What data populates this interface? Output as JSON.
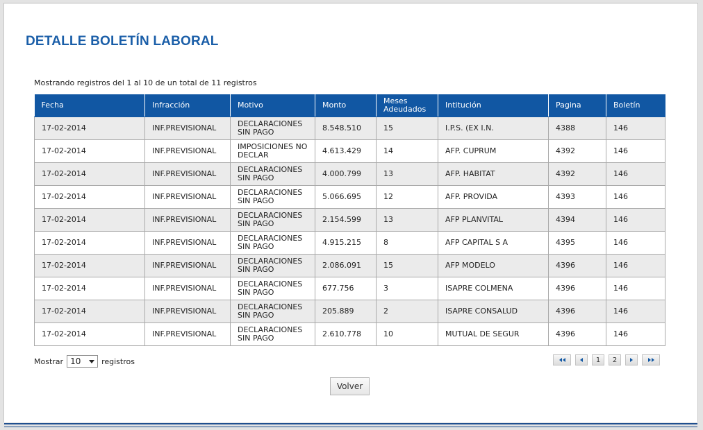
{
  "page": {
    "title": "DETALLE BOLETÍN LABORAL"
  },
  "info": {
    "text": "Mostrando registros del 1 al 10 de un total de 11 registros"
  },
  "table": {
    "headers": [
      "Fecha",
      "Infracción",
      "Motivo",
      "Monto",
      "Meses Adeudados",
      "Intitución",
      "Pagina",
      "Boletín"
    ],
    "rows": [
      [
        "17-02-2014",
        "INF.PREVISIONAL",
        "DECLARACIONES SIN PAGO",
        "8.548.510",
        "15",
        "I.P.S. (EX I.N.",
        "4388",
        "146"
      ],
      [
        "17-02-2014",
        "INF.PREVISIONAL",
        "IMPOSICIONES NO DECLAR",
        "4.613.429",
        "14",
        "AFP. CUPRUM",
        "4392",
        "146"
      ],
      [
        "17-02-2014",
        "INF.PREVISIONAL",
        "DECLARACIONES SIN PAGO",
        "4.000.799",
        "13",
        "AFP. HABITAT",
        "4392",
        "146"
      ],
      [
        "17-02-2014",
        "INF.PREVISIONAL",
        "DECLARACIONES SIN PAGO",
        "5.066.695",
        "12",
        "AFP. PROVIDA",
        "4393",
        "146"
      ],
      [
        "17-02-2014",
        "INF.PREVISIONAL",
        "DECLARACIONES SIN PAGO",
        "2.154.599",
        "13",
        "AFP PLANVITAL",
        "4394",
        "146"
      ],
      [
        "17-02-2014",
        "INF.PREVISIONAL",
        "DECLARACIONES SIN PAGO",
        "4.915.215",
        "8",
        "AFP CAPITAL S A",
        "4395",
        "146"
      ],
      [
        "17-02-2014",
        "INF.PREVISIONAL",
        "DECLARACIONES SIN PAGO",
        "2.086.091",
        "15",
        "AFP MODELO",
        "4396",
        "146"
      ],
      [
        "17-02-2014",
        "INF.PREVISIONAL",
        "DECLARACIONES SIN PAGO",
        "677.756",
        "3",
        "ISAPRE COLMENA",
        "4396",
        "146"
      ],
      [
        "17-02-2014",
        "INF.PREVISIONAL",
        "DECLARACIONES SIN PAGO",
        "205.889",
        "2",
        "ISAPRE CONSALUD",
        "4396",
        "146"
      ],
      [
        "17-02-2014",
        "INF.PREVISIONAL",
        "DECLARACIONES SIN PAGO",
        "2.610.778",
        "10",
        "MUTUAL DE SEGUR",
        "4396",
        "146"
      ]
    ]
  },
  "length": {
    "prefix": "Mostrar",
    "selected": "10",
    "suffix": "registros"
  },
  "pager": {
    "first_icon": "double-chevron-left-icon",
    "prev_icon": "chevron-left-icon",
    "pages": [
      "1",
      "2"
    ],
    "current_page": "1",
    "next_icon": "chevron-right-icon",
    "last_icon": "double-chevron-right-icon"
  },
  "actions": {
    "back_label": "Volver"
  },
  "colors": {
    "title": "#1a5ea8",
    "header_bg": "#1157a3",
    "row_alt": "#ebebeb"
  }
}
